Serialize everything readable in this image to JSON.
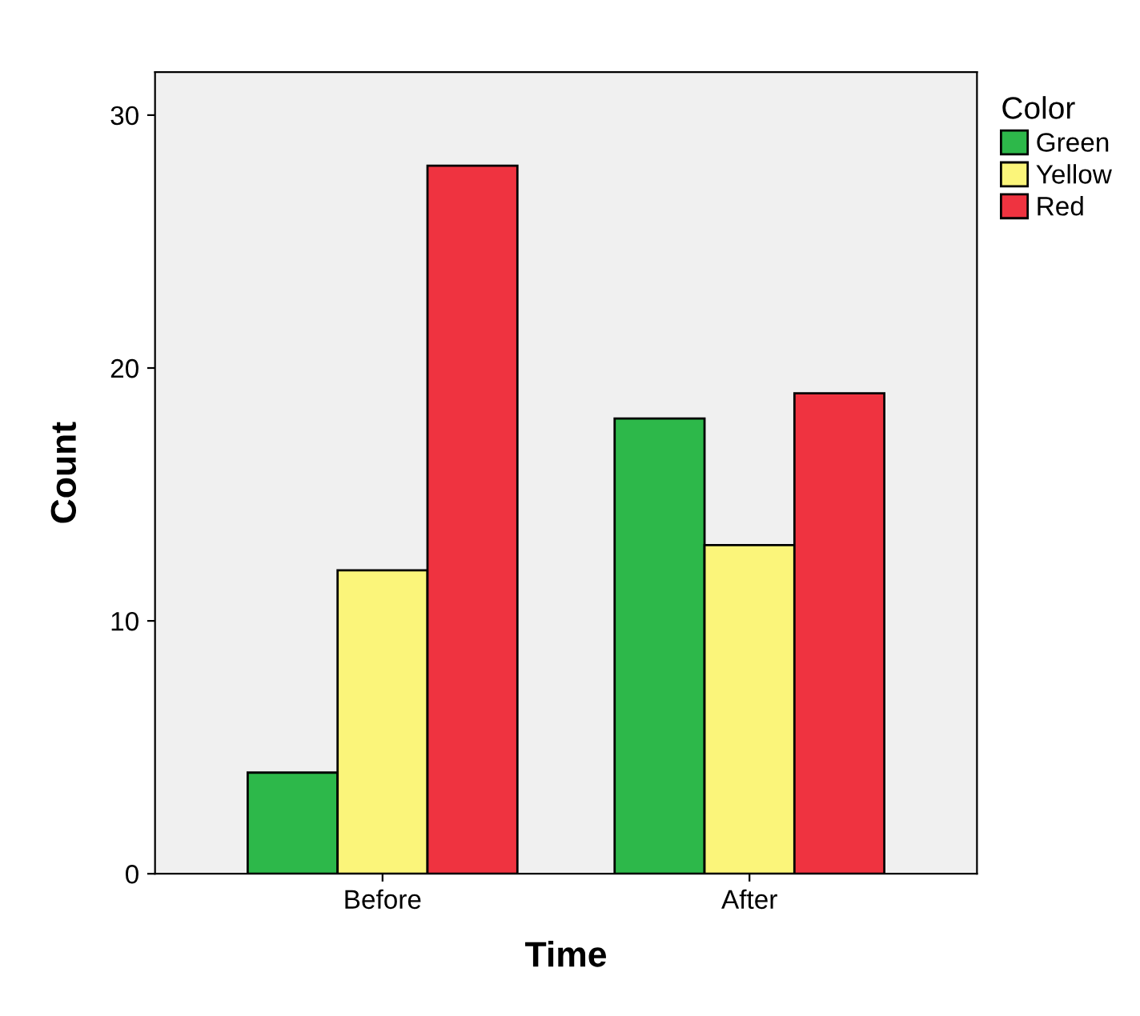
{
  "chart_data": {
    "type": "bar",
    "xlabel": "Time",
    "ylabel": "Count",
    "legend_title": "Color",
    "categories": [
      "Before",
      "After"
    ],
    "series": [
      {
        "name": "Green",
        "color": "#2db84a",
        "values": [
          4,
          18
        ]
      },
      {
        "name": "Yellow",
        "color": "#fbf57a",
        "values": [
          12,
          13
        ]
      },
      {
        "name": "Red",
        "color": "#ef3340",
        "values": [
          28,
          19
        ]
      }
    ],
    "ylim": [
      0,
      31.7
    ],
    "yticks": [
      0,
      10,
      20,
      30
    ],
    "grid": false,
    "legend": "top right"
  }
}
